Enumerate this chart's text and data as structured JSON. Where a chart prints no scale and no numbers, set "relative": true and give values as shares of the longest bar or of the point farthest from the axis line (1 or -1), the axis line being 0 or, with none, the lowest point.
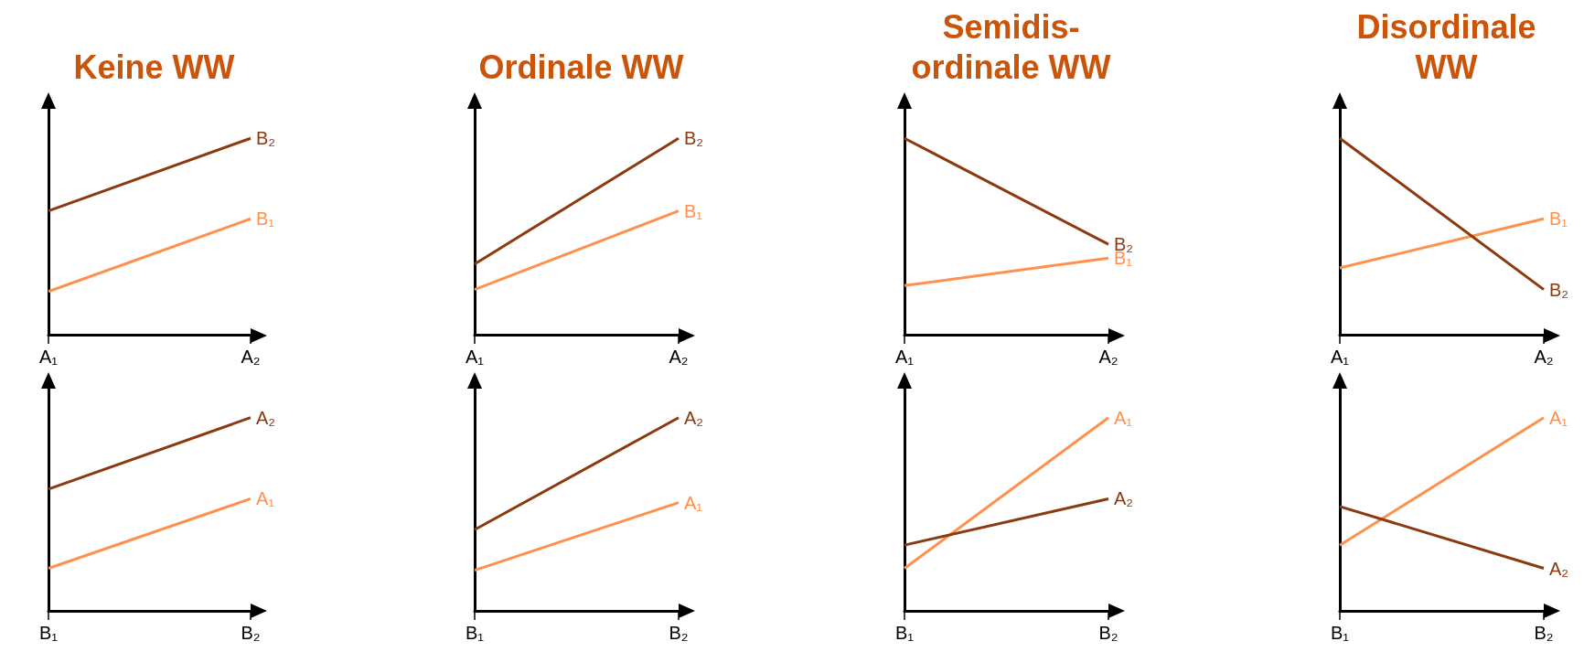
{
  "chart_data": [
    {
      "type": "line",
      "title": "Keine WW",
      "categories": [
        "A₁",
        "A₂"
      ],
      "relative": true,
      "marker": "none",
      "series": [
        {
          "name": "B₁",
          "color": "#ff914d",
          "values": [
            0.22,
            0.59
          ]
        },
        {
          "name": "B₂",
          "color": "#8b3a0f",
          "values": [
            0.63,
            1
          ]
        }
      ]
    },
    {
      "type": "line",
      "title": "Ordinale WW",
      "categories": [
        "A₁",
        "A₂"
      ],
      "relative": true,
      "marker": "none",
      "series": [
        {
          "name": "B₁",
          "color": "#ff914d",
          "values": [
            0.23,
            0.63
          ]
        },
        {
          "name": "B₂",
          "color": "#8b3a0f",
          "values": [
            0.36,
            1
          ]
        }
      ]
    },
    {
      "type": "line",
      "title": "Semidis-\nordinale WW",
      "categories": [
        "A₁",
        "A₂"
      ],
      "relative": true,
      "marker": "none",
      "series": [
        {
          "name": "B₁",
          "color": "#ff914d",
          "values": [
            0.25,
            0.39
          ]
        },
        {
          "name": "B₂",
          "color": "#8b3a0f",
          "values": [
            1,
            0.46
          ]
        }
      ]
    },
    {
      "type": "line",
      "title": "Disordinale\nWW",
      "categories": [
        "A₁",
        "A₂"
      ],
      "relative": true,
      "marker": "none",
      "series": [
        {
          "name": "B₁",
          "color": "#ff914d",
          "values": [
            0.34,
            0.59
          ]
        },
        {
          "name": "B₂",
          "color": "#8b3a0f",
          "values": [
            1,
            0.23
          ]
        }
      ]
    },
    {
      "type": "line",
      "categories": [
        "B₁",
        "B₂"
      ],
      "relative": true,
      "marker": "none",
      "series": [
        {
          "name": "A₁",
          "color": "#ff914d",
          "values": [
            0.22,
            0.58
          ]
        },
        {
          "name": "A₂",
          "color": "#8b3a0f",
          "values": [
            0.63,
            1
          ]
        }
      ]
    },
    {
      "type": "line",
      "categories": [
        "B₁",
        "B₂"
      ],
      "relative": true,
      "marker": "none",
      "series": [
        {
          "name": "A₁",
          "color": "#ff914d",
          "values": [
            0.21,
            0.56
          ]
        },
        {
          "name": "A₂",
          "color": "#8b3a0f",
          "values": [
            0.42,
            1
          ]
        }
      ]
    },
    {
      "type": "line",
      "categories": [
        "B₁",
        "B₂"
      ],
      "relative": true,
      "marker": "none",
      "series": [
        {
          "name": "A₁",
          "color": "#ff914d",
          "values": [
            0.22,
            1
          ]
        },
        {
          "name": "A₂",
          "color": "#8b3a0f",
          "values": [
            0.34,
            0.58
          ]
        }
      ]
    },
    {
      "type": "line",
      "categories": [
        "B₁",
        "B₂"
      ],
      "relative": true,
      "marker": "none",
      "series": [
        {
          "name": "A₁",
          "color": "#ff914d",
          "values": [
            0.34,
            1
          ]
        },
        {
          "name": "A₂",
          "color": "#8b3a0f",
          "values": [
            0.54,
            0.22
          ]
        }
      ]
    }
  ]
}
